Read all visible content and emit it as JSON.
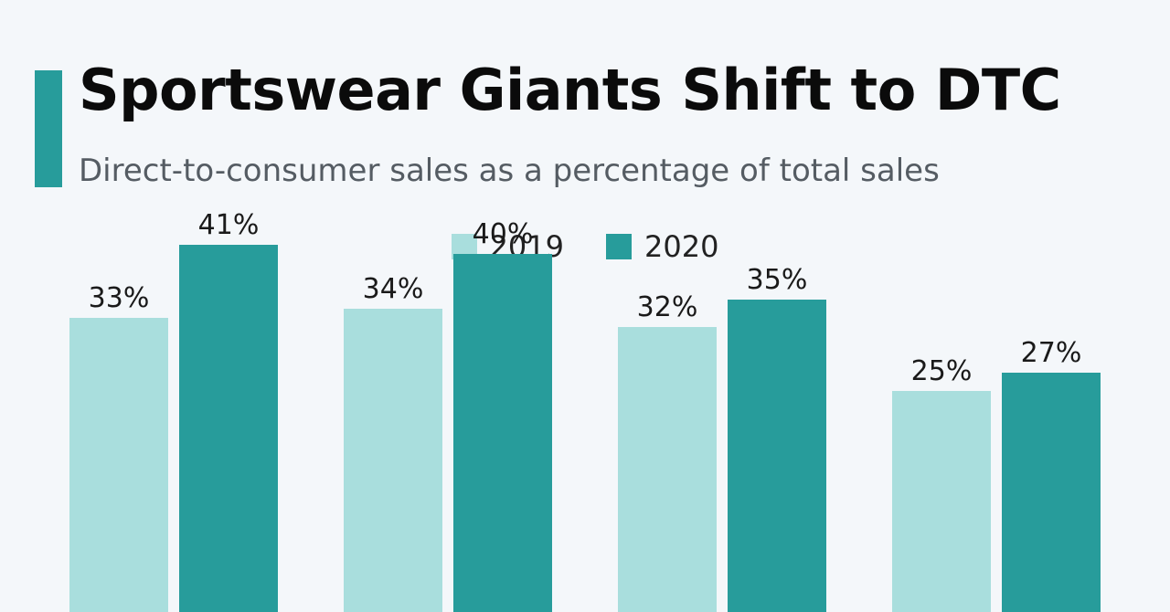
{
  "header": {
    "title": "Sportswear Giants Shift to DTC",
    "subtitle": "Direct-to-consumer sales as a percentage of total sales"
  },
  "colors": {
    "accent": "#279c9b",
    "series_2019": "#a9dedd",
    "series_2020": "#279c9b",
    "background": "#f4f7fa"
  },
  "legend": {
    "items": [
      {
        "label": "2019",
        "color": "#a9dedd"
      },
      {
        "label": "2020",
        "color": "#279c9b"
      }
    ]
  },
  "chart_data": {
    "type": "bar",
    "title": "Sportswear Giants Shift to DTC",
    "subtitle": "Direct-to-consumer sales as a percentage of total sales",
    "categories": [
      "",
      "",
      "",
      ""
    ],
    "series": [
      {
        "name": "2019",
        "values": [
          33,
          34,
          32,
          25
        ],
        "labels": [
          "33%",
          "34%",
          "32%",
          "25%"
        ]
      },
      {
        "name": "2020",
        "values": [
          41,
          40,
          35,
          27
        ],
        "labels": [
          "41%",
          "40%",
          "35%",
          "27%"
        ]
      }
    ],
    "xlabel": "",
    "ylabel": "",
    "ylim": [
      0,
      45
    ],
    "grid": false,
    "legend_position": "top-center"
  }
}
